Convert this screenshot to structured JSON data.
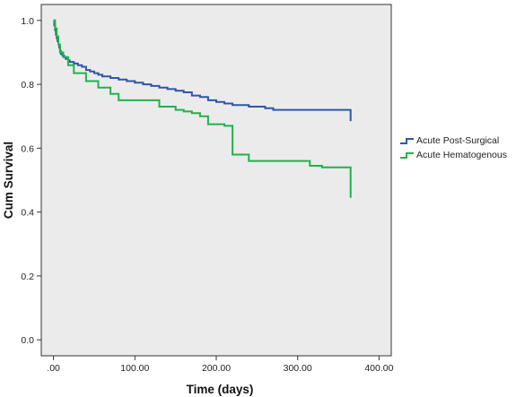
{
  "colors": {
    "plot_background": "#ebebeb",
    "axis": "#333333",
    "series": [
      "#2e56a8",
      "#22b14c"
    ]
  },
  "chart_data": {
    "type": "line",
    "step": true,
    "title": "",
    "xlabel": "Time (days)",
    "ylabel": "Cum Survival",
    "xlim": [
      -15,
      415
    ],
    "ylim": [
      -0.05,
      1.05
    ],
    "x_ticks": [
      0,
      100,
      200,
      300,
      400
    ],
    "x_tick_labels": [
      ".00",
      "100.00",
      "200.00",
      "300.00",
      "400.00"
    ],
    "y_ticks": [
      0,
      0.2,
      0.4,
      0.6,
      0.8,
      1.0
    ],
    "y_tick_labels": [
      "0.0",
      "0.2",
      "0.4",
      "0.6",
      "0.8",
      "1.0"
    ],
    "grid": false,
    "legend_position": "right",
    "series": [
      {
        "name": "Acute Post-Surgical",
        "x": [
          0,
          1,
          2,
          3,
          4,
          5,
          6,
          7,
          8,
          9,
          11,
          13,
          15,
          18,
          20,
          25,
          30,
          35,
          40,
          45,
          50,
          55,
          60,
          70,
          80,
          90,
          100,
          110,
          120,
          130,
          140,
          150,
          160,
          170,
          180,
          190,
          200,
          210,
          220,
          240,
          260,
          270,
          280,
          300,
          310,
          320,
          330,
          340,
          350,
          360,
          365
        ],
        "y": [
          1.0,
          0.985,
          0.97,
          0.955,
          0.945,
          0.935,
          0.925,
          0.915,
          0.905,
          0.895,
          0.89,
          0.885,
          0.88,
          0.875,
          0.87,
          0.865,
          0.86,
          0.855,
          0.845,
          0.84,
          0.835,
          0.83,
          0.825,
          0.82,
          0.815,
          0.81,
          0.805,
          0.8,
          0.795,
          0.79,
          0.785,
          0.78,
          0.775,
          0.765,
          0.76,
          0.75,
          0.745,
          0.74,
          0.735,
          0.73,
          0.725,
          0.72,
          0.72,
          0.72,
          0.72,
          0.72,
          0.72,
          0.72,
          0.72,
          0.72,
          0.685
        ]
      },
      {
        "name": "Acute Hematogenous",
        "x": [
          0,
          2,
          4,
          6,
          8,
          12,
          18,
          25,
          40,
          55,
          70,
          80,
          100,
          130,
          150,
          160,
          170,
          180,
          190,
          210,
          220,
          240,
          260,
          300,
          315,
          330,
          350,
          365
        ],
        "y": [
          1.0,
          0.975,
          0.95,
          0.925,
          0.9,
          0.885,
          0.86,
          0.835,
          0.81,
          0.79,
          0.77,
          0.75,
          0.75,
          0.73,
          0.72,
          0.715,
          0.71,
          0.7,
          0.675,
          0.67,
          0.58,
          0.56,
          0.56,
          0.56,
          0.545,
          0.54,
          0.54,
          0.445
        ]
      }
    ]
  }
}
